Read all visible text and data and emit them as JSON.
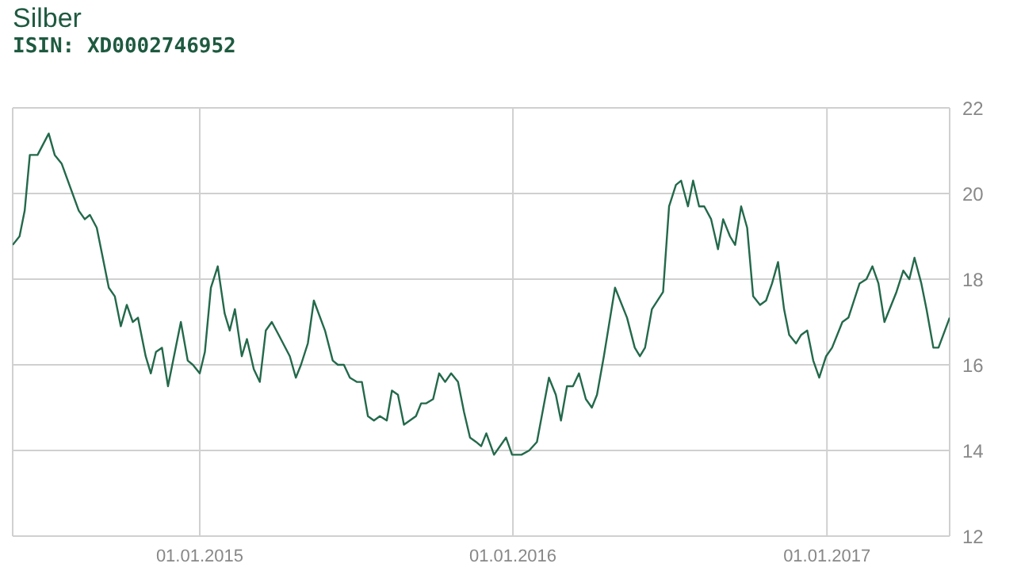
{
  "chart_data": {
    "type": "line",
    "title": "Silber",
    "subtitle": "ISIN: XD0002746952",
    "x": [
      "2014-05-28",
      "2014-06-05",
      "2014-06-11",
      "2014-06-17",
      "2014-06-26",
      "2014-07-09",
      "2014-07-16",
      "2014-07-24",
      "2014-08-13",
      "2014-08-20",
      "2014-08-26",
      "2014-09-03",
      "2014-09-09",
      "2014-09-17",
      "2014-09-24",
      "2014-10-01",
      "2014-10-08",
      "2014-10-15",
      "2014-10-21",
      "2014-10-30",
      "2014-11-05",
      "2014-11-11",
      "2014-11-18",
      "2014-11-25",
      "2014-12-10",
      "2014-12-18",
      "2014-12-24",
      "2015-01-01",
      "2015-01-07",
      "2015-01-14",
      "2015-01-22",
      "2015-01-30",
      "2015-02-05",
      "2015-02-11",
      "2015-02-19",
      "2015-02-25",
      "2015-03-05",
      "2015-03-12",
      "2015-03-19",
      "2015-03-26",
      "2015-04-03",
      "2015-04-16",
      "2015-04-23",
      "2015-04-29",
      "2015-05-07",
      "2015-05-14",
      "2015-05-27",
      "2015-06-05",
      "2015-06-11",
      "2015-06-18",
      "2015-06-25",
      "2015-07-03",
      "2015-07-09",
      "2015-07-16",
      "2015-07-23",
      "2015-07-30",
      "2015-08-07",
      "2015-08-13",
      "2015-08-20",
      "2015-08-27",
      "2015-09-10",
      "2015-09-16",
      "2015-09-22",
      "2015-09-30",
      "2015-10-07",
      "2015-10-14",
      "2015-10-21",
      "2015-10-29",
      "2015-11-05",
      "2015-11-12",
      "2015-11-19",
      "2015-11-25",
      "2015-12-01",
      "2015-12-10",
      "2015-12-24",
      "2015-12-31",
      "2016-01-11",
      "2016-01-20",
      "2016-01-29",
      "2016-02-12",
      "2016-02-20",
      "2016-02-26",
      "2016-03-04",
      "2016-03-11",
      "2016-03-18",
      "2016-03-26",
      "2016-04-02",
      "2016-04-08",
      "2016-04-16",
      "2016-04-29",
      "2016-05-13",
      "2016-05-22",
      "2016-05-28",
      "2016-06-03",
      "2016-06-11",
      "2016-06-24",
      "2016-07-01",
      "2016-07-09",
      "2016-07-15",
      "2016-07-23",
      "2016-07-29",
      "2016-08-05",
      "2016-08-11",
      "2016-08-19",
      "2016-08-27",
      "2016-09-02",
      "2016-09-10",
      "2016-09-16",
      "2016-09-23",
      "2016-09-30",
      "2016-10-07",
      "2016-10-15",
      "2016-10-22",
      "2016-10-29",
      "2016-11-05",
      "2016-11-12",
      "2016-11-18",
      "2016-11-26",
      "2016-12-02",
      "2016-12-09",
      "2016-12-16",
      "2016-12-23",
      "2016-12-31",
      "2017-01-07",
      "2017-01-19",
      "2017-01-26",
      "2017-02-08",
      "2017-02-16",
      "2017-02-23",
      "2017-03-02",
      "2017-03-09",
      "2017-03-23",
      "2017-03-31",
      "2017-04-07",
      "2017-04-13",
      "2017-04-21",
      "2017-04-27",
      "2017-05-05",
      "2017-05-11",
      "2017-05-24"
    ],
    "series": [
      {
        "color": "#23694b",
        "values": [
          18.8,
          19.0,
          19.6,
          20.9,
          20.9,
          21.4,
          20.9,
          20.7,
          19.6,
          19.4,
          19.5,
          19.2,
          18.6,
          17.8,
          17.6,
          16.9,
          17.4,
          17.0,
          17.1,
          16.2,
          15.8,
          16.3,
          16.4,
          15.5,
          17.0,
          16.1,
          16.0,
          15.8,
          16.3,
          17.8,
          18.3,
          17.2,
          16.8,
          17.3,
          16.2,
          16.6,
          15.9,
          15.6,
          16.8,
          17.0,
          16.7,
          16.2,
          15.7,
          16.0,
          16.5,
          17.5,
          16.8,
          16.1,
          16.0,
          16.0,
          15.7,
          15.6,
          15.6,
          14.8,
          14.7,
          14.8,
          14.7,
          15.4,
          15.3,
          14.6,
          14.8,
          15.1,
          15.1,
          15.2,
          15.8,
          15.6,
          15.8,
          15.6,
          14.9,
          14.3,
          14.2,
          14.1,
          14.4,
          13.9,
          14.3,
          13.9,
          13.9,
          14.0,
          14.2,
          15.7,
          15.3,
          14.7,
          15.5,
          15.5,
          15.8,
          15.2,
          15.0,
          15.3,
          16.2,
          17.8,
          17.1,
          16.4,
          16.2,
          16.4,
          17.3,
          17.7,
          19.7,
          20.2,
          20.3,
          19.7,
          20.3,
          19.7,
          19.7,
          19.4,
          18.7,
          19.4,
          19.0,
          18.8,
          19.7,
          19.2,
          17.6,
          17.4,
          17.5,
          17.9,
          18.4,
          17.3,
          16.7,
          16.5,
          16.7,
          16.8,
          16.1,
          15.7,
          16.2,
          16.4,
          17.0,
          17.1,
          17.9,
          18.0,
          18.3,
          17.9,
          17.0,
          17.7,
          18.2,
          18.0,
          18.5,
          17.9,
          17.3,
          16.4,
          16.4,
          17.1
        ]
      }
    ],
    "xlim": [
      "2014-05-28",
      "2017-05-24"
    ],
    "xticks": [
      {
        "value": "2015-01-01",
        "label": "01.01.2015"
      },
      {
        "value": "2016-01-01",
        "label": "01.01.2016"
      },
      {
        "value": "2017-01-01",
        "label": "01.01.2017"
      }
    ],
    "ylim": [
      12,
      22
    ],
    "yticks": [
      12,
      14,
      16,
      18,
      20,
      22
    ],
    "grid": true,
    "marker": "none",
    "line_style": "solid"
  }
}
